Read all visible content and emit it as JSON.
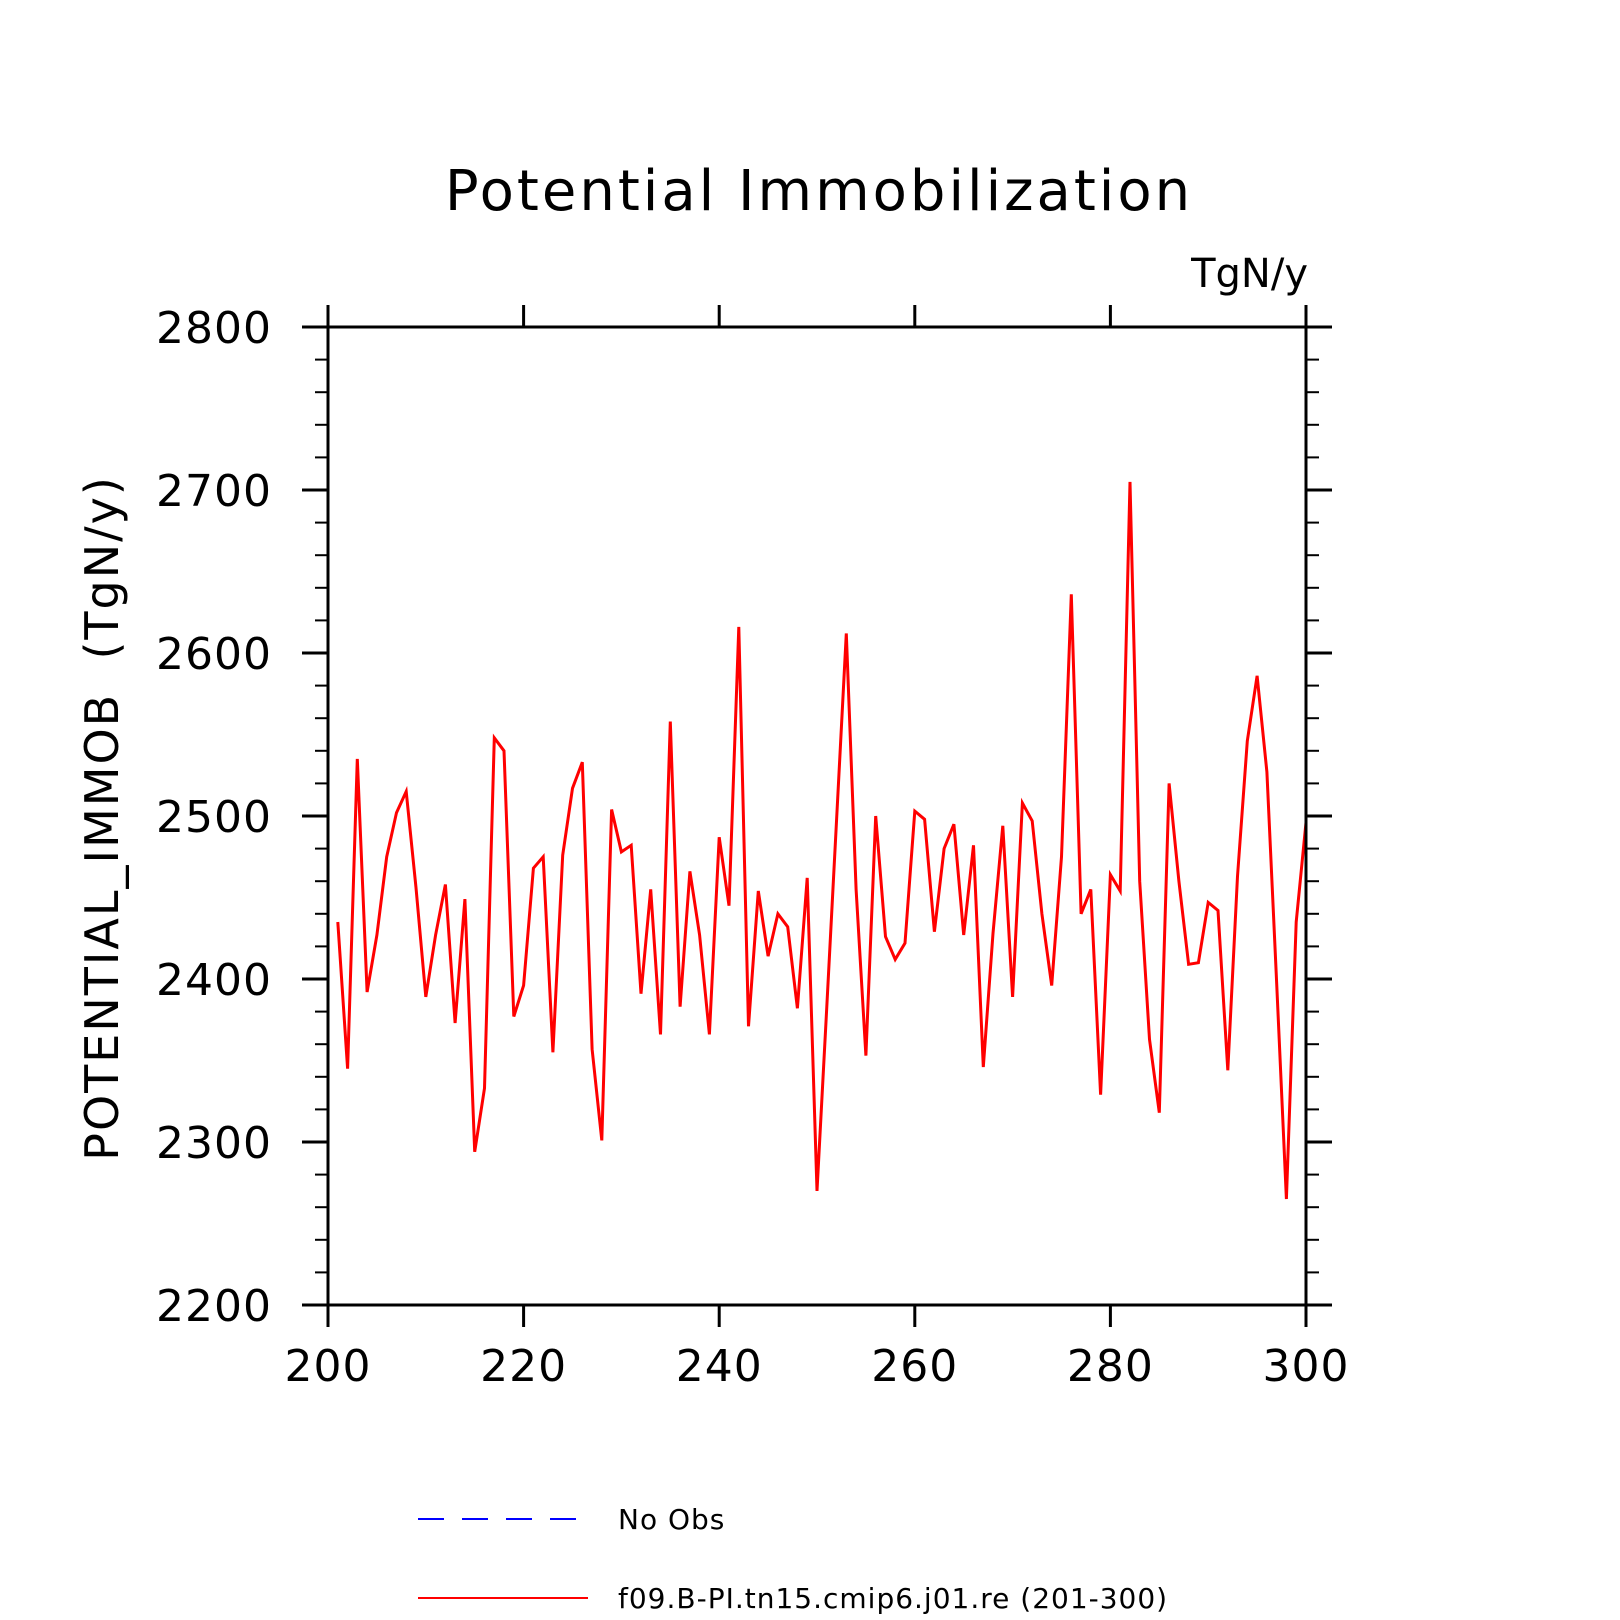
{
  "chart_data": {
    "type": "line",
    "title": "Potential Immobilization",
    "units_label": "TgN/y",
    "xlabel": "",
    "ylabel": "POTENTIAL_IMMOB  (TgN/y)",
    "xlim": [
      200,
      300
    ],
    "ylim": [
      2200,
      2800
    ],
    "x_ticks": [
      200,
      220,
      240,
      260,
      280,
      300
    ],
    "x_tick_labels": [
      "200",
      "220",
      "240",
      "260",
      "280",
      "300"
    ],
    "y_ticks": [
      2200,
      2300,
      2400,
      2500,
      2600,
      2700,
      2800
    ],
    "y_tick_labels": [
      "2200",
      "2300",
      "2400",
      "2500",
      "2600",
      "2700",
      "2800"
    ],
    "grid": false,
    "legend_position": "bottom-center",
    "legend": [
      {
        "label": "No Obs",
        "color": "#0000ff",
        "style": "dashed"
      },
      {
        "label": "f09.B-PI.tn15.cmip6.j01.re (201-300)",
        "color": "#ff0000",
        "style": "solid"
      }
    ],
    "series": [
      {
        "name": "f09.B-PI.tn15.cmip6.j01.re (201-300)",
        "color": "#ff0000",
        "x": [
          201,
          202,
          203,
          204,
          205,
          206,
          207,
          208,
          209,
          210,
          211,
          212,
          213,
          214,
          215,
          216,
          217,
          218,
          219,
          220,
          221,
          222,
          223,
          224,
          225,
          226,
          227,
          228,
          229,
          230,
          231,
          232,
          233,
          234,
          235,
          236,
          237,
          238,
          239,
          240,
          241,
          242,
          243,
          244,
          245,
          246,
          247,
          248,
          249,
          250,
          251,
          252,
          253,
          254,
          255,
          256,
          257,
          258,
          259,
          260,
          261,
          262,
          263,
          264,
          265,
          266,
          267,
          268,
          269,
          270,
          271,
          272,
          273,
          274,
          275,
          276,
          277,
          278,
          279,
          280,
          281,
          282,
          283,
          284,
          285,
          286,
          287,
          288,
          289,
          290,
          291,
          292,
          293,
          294,
          295,
          296,
          297,
          298,
          299,
          300
        ],
        "values": [
          2435,
          2345,
          2535,
          2392,
          2427,
          2475,
          2502,
          2515,
          2456,
          2389,
          2427,
          2458,
          2373,
          2449,
          2294,
          2333,
          2548,
          2540,
          2377,
          2396,
          2468,
          2475,
          2355,
          2476,
          2517,
          2533,
          2357,
          2301,
          2504,
          2478,
          2482,
          2391,
          2455,
          2366,
          2558,
          2383,
          2466,
          2427,
          2366,
          2487,
          2445,
          2616,
          2371,
          2454,
          2414,
          2440,
          2432,
          2382,
          2462,
          2270,
          2383,
          2498,
          2612,
          2455,
          2353,
          2500,
          2426,
          2412,
          2422,
          2503,
          2498,
          2429,
          2480,
          2495,
          2427,
          2482,
          2346,
          2428,
          2494,
          2389,
          2508,
          2497,
          2440,
          2396,
          2475,
          2636,
          2440,
          2455,
          2329,
          2464,
          2454,
          2705,
          2460,
          2363,
          2318,
          2520,
          2460,
          2409,
          2410,
          2447,
          2442,
          2344,
          2463,
          2546,
          2586,
          2527,
          2397,
          2265,
          2435,
          2496
        ]
      }
    ]
  }
}
